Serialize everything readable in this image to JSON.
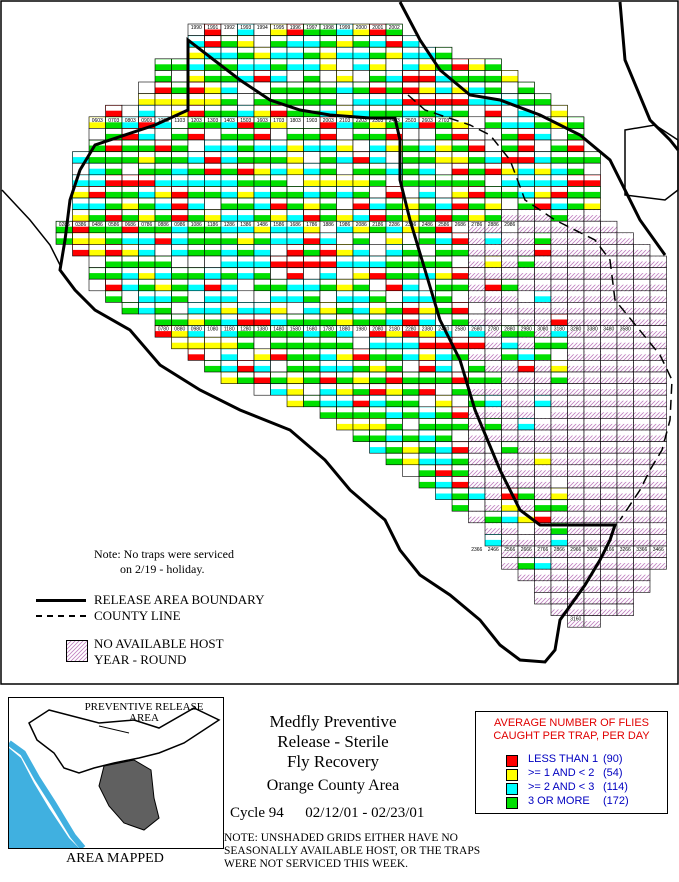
{
  "title": {
    "line1": "Medfly Preventive",
    "line2": "Release - Sterile",
    "line3": "Fly Recovery",
    "area": "Orange County Area"
  },
  "cycle": {
    "label": "Cycle 94",
    "dates": "02/12/01 - 02/23/01"
  },
  "bottom_note": "NOTE: UNSHADED GRIDS EITHER HAVE NO SEASONALLY AVAILABLE HOST, OR THE TRAPS WERE NOT SERVICED THIS WEEK.",
  "map_note": {
    "line1": "Note: No traps were serviced",
    "line2": "on 2/19 - holiday."
  },
  "map_legend": {
    "boundary": "RELEASE AREA BOUNDARY",
    "county": "COUNTY LINE",
    "host_line1": "NO AVAILABLE HOST",
    "host_line2": "YEAR - ROUND"
  },
  "inset": {
    "label_line1": "PREVENTIVE RELEASE",
    "label_line2": "AREA",
    "caption": "AREA MAPPED"
  },
  "legend": {
    "title_line1": "AVERAGE NUMBER OF FLIES",
    "title_line2": "CAUGHT PER TRAP, PER DAY",
    "items": [
      {
        "label": "LESS THAN 1",
        "count": "(90)",
        "color": "#ff0000"
      },
      {
        "label": ">= 1 AND < 2",
        "count": "(54)",
        "color": "#ffff00"
      },
      {
        "label": ">= 2 AND < 3",
        "count": "(114)",
        "color": "#00ffff"
      },
      {
        "label": "3 OR MORE",
        "count": "(172)",
        "color": "#00e000"
      }
    ]
  },
  "colors": {
    "red": "#ff0000",
    "yellow": "#ffff00",
    "cyan": "#00ffff",
    "green": "#00e000",
    "hatch": "#c080c0"
  },
  "grid_cells": {
    "row_00": [
      "1990",
      "1991",
      "1992",
      "1993",
      "1994",
      "1995",
      "1996",
      "1997",
      "1998",
      "1999",
      "2000",
      "2001",
      "2002"
    ],
    "row_08": [
      "0603",
      "0703",
      "0803",
      "0903",
      "1003",
      "1103",
      "1203",
      "1303",
      "1403",
      "1503",
      "1603",
      "1703",
      "1803",
      "1903",
      "2003",
      "2103",
      "2203",
      "2303",
      "2403",
      "2503",
      "2603",
      "2703"
    ],
    "row_17": [
      "0286",
      "0386",
      "0486",
      "0586",
      "0686",
      "0786",
      "0886",
      "0986",
      "1086",
      "1186",
      "1286",
      "1386",
      "1486",
      "1586",
      "1686",
      "1786",
      "1886",
      "1986",
      "2086",
      "2186",
      "2286",
      "2386",
      "2486",
      "2586",
      "2686",
      "2786",
      "2886",
      "2986"
    ],
    "row_26": [
      "0780",
      "0880",
      "0980",
      "1080",
      "1180",
      "1280",
      "1380",
      "1480",
      "1580",
      "1680",
      "1780",
      "1880",
      "1980",
      "2080",
      "2180",
      "2280",
      "2380",
      "2480",
      "2580",
      "2680",
      "2780",
      "2880",
      "2980",
      "3080",
      "3180",
      "3280",
      "3380",
      "3480",
      "3580"
    ],
    "row_45": [
      "2366",
      "2466",
      "2566",
      "2666",
      "2766",
      "2866",
      "2966",
      "3066",
      "3166",
      "3266",
      "3366",
      "3466"
    ],
    "row_51": [
      "3160"
    ]
  }
}
